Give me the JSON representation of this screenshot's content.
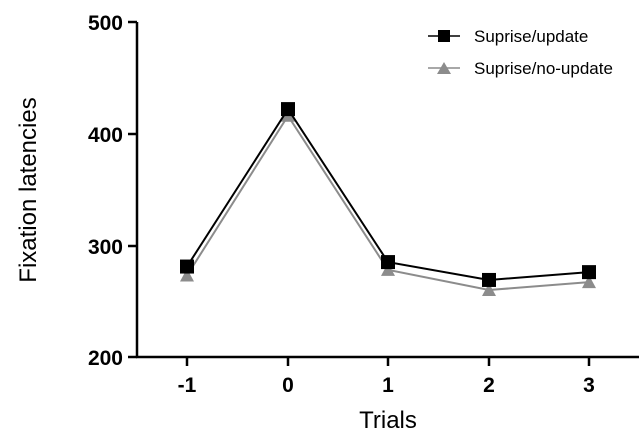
{
  "chart_data": {
    "type": "line",
    "title": "",
    "xlabel": "Trials",
    "ylabel": "Fixation latencies",
    "x": [
      "-1",
      "0",
      "1",
      "2",
      "3"
    ],
    "ylim": [
      200,
      500
    ],
    "yticks": [
      "200",
      "300",
      "400",
      "500"
    ],
    "grid": false,
    "legend_position": "top-right",
    "series": [
      {
        "name": "Suprise/update",
        "marker": "square",
        "color": "#000000",
        "values": [
          281,
          422,
          285,
          269,
          276
        ]
      },
      {
        "name": "Suprise/no-update",
        "marker": "triangle",
        "color": "#8c8c8c",
        "values": [
          273,
          416,
          278,
          260,
          267
        ]
      }
    ]
  }
}
